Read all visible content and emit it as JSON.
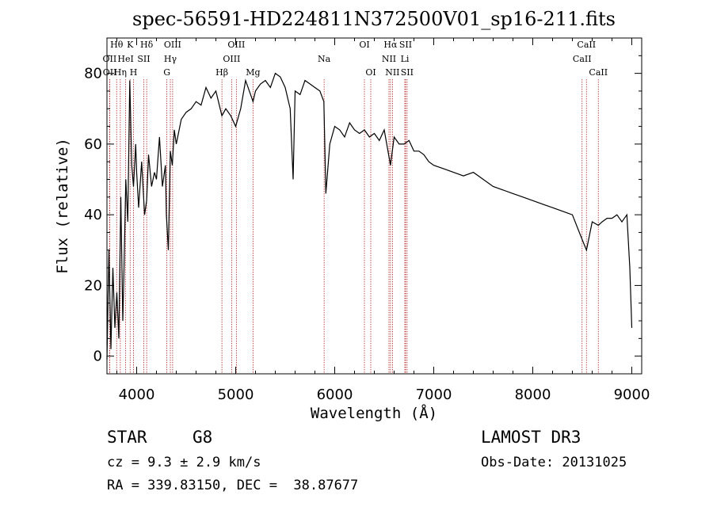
{
  "chart_data": {
    "type": "line",
    "title": "spec-56591-HD224811N372500V01_sp16-211.fits",
    "xlabel": "Wavelength (Å)",
    "ylabel": "Flux (relative)",
    "xlim": [
      3700,
      9100
    ],
    "ylim": [
      -5,
      90
    ],
    "xticks": [
      4000,
      5000,
      6000,
      7000,
      8000,
      9000
    ],
    "yticks": [
      0,
      20,
      40,
      60,
      80
    ],
    "grid": false,
    "series": [
      {
        "x": [
          3700,
          3720,
          3740,
          3760,
          3780,
          3800,
          3820,
          3840,
          3860,
          3870,
          3890,
          3910,
          3930,
          3950,
          3968,
          3990,
          4000,
          4020,
          4050,
          4080,
          4101,
          4120,
          4150,
          4180,
          4200,
          4230,
          4260,
          4290,
          4300,
          4320,
          4340,
          4360,
          4380,
          4400,
          4450,
          4500,
          4550,
          4600,
          4650,
          4700,
          4750,
          4800,
          4861,
          4900,
          4950,
          5000,
          5050,
          5100,
          5150,
          5175,
          5200,
          5250,
          5300,
          5350,
          5400,
          5450,
          5500,
          5550,
          5580,
          5600,
          5650,
          5700,
          5750,
          5800,
          5850,
          5890,
          5910,
          5950,
          6000,
          6050,
          6100,
          6150,
          6200,
          6250,
          6300,
          6350,
          6400,
          6450,
          6500,
          6563,
          6600,
          6650,
          6700,
          6750,
          6800,
          6850,
          6900,
          6950,
          7000,
          7100,
          7200,
          7300,
          7400,
          7500,
          7600,
          7700,
          7800,
          7900,
          8000,
          8100,
          8200,
          8300,
          8400,
          8498,
          8542,
          8600,
          8662,
          8700,
          8750,
          8800,
          8850,
          8900,
          8950,
          8980,
          9000
        ],
        "y": [
          -1,
          30,
          2,
          25,
          8,
          18,
          5,
          45,
          10,
          22,
          50,
          38,
          78,
          54,
          48,
          60,
          52,
          42,
          55,
          40,
          44,
          57,
          48,
          52,
          50,
          62,
          48,
          54,
          40,
          30,
          58,
          54,
          64,
          60,
          67,
          69,
          70,
          72,
          71,
          76,
          73,
          75,
          68,
          70,
          68,
          65,
          70,
          78,
          74,
          72,
          75,
          77,
          78,
          76,
          80,
          79,
          76,
          70,
          50,
          75,
          74,
          78,
          77,
          76,
          75,
          72,
          46,
          60,
          65,
          64,
          62,
          66,
          64,
          63,
          64,
          62,
          63,
          61,
          64,
          54,
          62,
          60,
          60,
          61,
          58,
          58,
          57,
          55,
          54,
          53,
          52,
          51,
          52,
          50,
          48,
          47,
          46,
          45,
          44,
          43,
          42,
          41,
          40,
          33,
          30,
          38,
          37,
          38,
          39,
          39,
          40,
          38,
          40,
          25,
          8
        ]
      }
    ],
    "spectral_lines": [
      {
        "label": "Hθ",
        "x": 3798,
        "row": 0
      },
      {
        "label": "OII",
        "x": 3727,
        "row": 1
      },
      {
        "label": "OII",
        "x": 3729,
        "row": 2
      },
      {
        "label": "Hη",
        "x": 3835,
        "row": 2
      },
      {
        "label": "HeI",
        "x": 3889,
        "row": 1
      },
      {
        "label": "K",
        "x": 3934,
        "row": 0
      },
      {
        "label": "H",
        "x": 3968,
        "row": 2
      },
      {
        "label": "Hδ",
        "x": 4101,
        "row": 0
      },
      {
        "label": "SII",
        "x": 4072,
        "row": 1
      },
      {
        "label": "OIII",
        "x": 4363,
        "row": 0
      },
      {
        "label": "Hγ",
        "x": 4340,
        "row": 1
      },
      {
        "label": "G",
        "x": 4305,
        "row": 2
      },
      {
        "label": "OIII",
        "x": 5007,
        "row": 0
      },
      {
        "label": "OIII",
        "x": 4959,
        "row": 1
      },
      {
        "label": "Hβ",
        "x": 4861,
        "row": 2
      },
      {
        "label": "Mg",
        "x": 5175,
        "row": 2
      },
      {
        "label": "Na",
        "x": 5893,
        "row": 1
      },
      {
        "label": "OI",
        "x": 6300,
        "row": 0
      },
      {
        "label": "OI",
        "x": 6364,
        "row": 2
      },
      {
        "label": "Hα",
        "x": 6563,
        "row": 0
      },
      {
        "label": "SII",
        "x": 6716,
        "row": 0
      },
      {
        "label": "NII",
        "x": 6548,
        "row": 1
      },
      {
        "label": "Li",
        "x": 6708,
        "row": 1
      },
      {
        "label": "NII",
        "x": 6583,
        "row": 2
      },
      {
        "label": "SII",
        "x": 6731,
        "row": 2
      },
      {
        "label": "CaII",
        "x": 8542,
        "row": 0
      },
      {
        "label": "CaII",
        "x": 8498,
        "row": 1
      },
      {
        "label": "CaII",
        "x": 8662,
        "row": 2
      }
    ],
    "line_color": "#000000",
    "marker_line_color": "#b22222"
  },
  "info": {
    "object_class": "STAR",
    "subclass": "G8",
    "survey": "LAMOST DR3",
    "velocity": "cz = 9.3 ± 2.9 km/s",
    "obs_date": "Obs-Date: 20131025",
    "coords": "RA = 339.83150, DEC =  38.87677"
  }
}
